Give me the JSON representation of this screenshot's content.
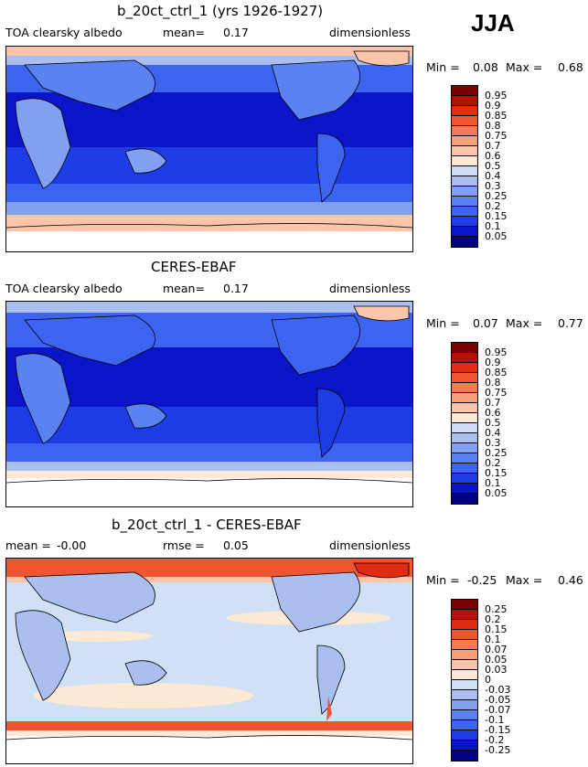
{
  "season": "JJA",
  "colors": {
    "abs": [
      "#000080",
      "#0a14c8",
      "#1e3ce6",
      "#3c64f0",
      "#5a82f0",
      "#82a0f0",
      "#aabeef",
      "#d0dcf5",
      "#fde9d4",
      "#fac5a8",
      "#f7a079",
      "#f37b54",
      "#ee5530",
      "#e02c12",
      "#b01400",
      "#780000"
    ],
    "diff": [
      "#000080",
      "#0a14c8",
      "#1e3ce6",
      "#3c64f0",
      "#5a82f0",
      "#82a0f0",
      "#aabeef",
      "#d0e0f5",
      "#fde9d4",
      "#fac5a8",
      "#f7a079",
      "#f37b54",
      "#ee5530",
      "#e02c12",
      "#b01400",
      "#780000"
    ]
  },
  "panels": [
    {
      "title": "b_20ct_ctrl_1 (yrs 1926-1927)",
      "left_label": "TOA clearsky albedo",
      "mean_label": "mean=",
      "mean_value": "0.17",
      "units": "dimensionless",
      "min_label": "Min =",
      "min_value": "0.08",
      "max_label": "Max =",
      "max_value": "0.68",
      "colorbar_labels": [
        "0.95",
        "0.9",
        "0.85",
        "0.8",
        "0.75",
        "0.7",
        "0.6",
        "0.5",
        "0.4",
        "0.3",
        "0.25",
        "0.2",
        "0.15",
        "0.1",
        "0.05"
      ]
    },
    {
      "title": "CERES-EBAF",
      "left_label": "TOA clearsky albedo",
      "mean_label": "mean=",
      "mean_value": "0.17",
      "units": "dimensionless",
      "min_label": "Min =",
      "min_value": "0.07",
      "max_label": "Max =",
      "max_value": "0.77",
      "colorbar_labels": [
        "0.95",
        "0.9",
        "0.85",
        "0.8",
        "0.75",
        "0.7",
        "0.6",
        "0.5",
        "0.4",
        "0.3",
        "0.25",
        "0.2",
        "0.15",
        "0.1",
        "0.05"
      ]
    },
    {
      "title": "b_20ct_ctrl_1 - CERES-EBAF",
      "left_label": "mean =",
      "left_value": "-0.00",
      "mean_label": "rmse =",
      "mean_value": "0.05",
      "units": "dimensionless",
      "min_label": "Min =",
      "min_value": "-0.25",
      "max_label": "Max =",
      "max_value": "0.46",
      "colorbar_labels": [
        "0.25",
        "0.2",
        "0.15",
        "0.1",
        "0.07",
        "0.05",
        "0.03",
        "0",
        "-0.03",
        "-0.05",
        "-0.07",
        "-0.1",
        "-0.15",
        "-0.2",
        "-0.25"
      ]
    }
  ],
  "chart_data": [
    {
      "type": "heatmap",
      "title": "b_20ct_ctrl_1 (yrs 1926-1927)",
      "variable": "TOA clearsky albedo",
      "units": "dimensionless",
      "mean": 0.17,
      "min": 0.08,
      "max": 0.68,
      "levels": [
        0.05,
        0.1,
        0.15,
        0.2,
        0.25,
        0.3,
        0.4,
        0.5,
        0.6,
        0.7,
        0.75,
        0.8,
        0.85,
        0.9,
        0.95
      ],
      "projection": "cylindrical equidistant, Pacific-centered"
    },
    {
      "type": "heatmap",
      "title": "CERES-EBAF",
      "variable": "TOA clearsky albedo",
      "units": "dimensionless",
      "mean": 0.17,
      "min": 0.07,
      "max": 0.77,
      "levels": [
        0.05,
        0.1,
        0.15,
        0.2,
        0.25,
        0.3,
        0.4,
        0.5,
        0.6,
        0.7,
        0.75,
        0.8,
        0.85,
        0.9,
        0.95
      ],
      "projection": "cylindrical equidistant, Pacific-centered"
    },
    {
      "type": "heatmap",
      "title": "b_20ct_ctrl_1 - CERES-EBAF",
      "units": "dimensionless",
      "mean": -0.0,
      "rmse": 0.05,
      "min": -0.25,
      "max": 0.46,
      "levels": [
        -0.25,
        -0.2,
        -0.15,
        -0.1,
        -0.07,
        -0.05,
        -0.03,
        0,
        0.03,
        0.05,
        0.07,
        0.1,
        0.15,
        0.2,
        0.25
      ],
      "projection": "cylindrical equidistant, Pacific-centered"
    }
  ]
}
